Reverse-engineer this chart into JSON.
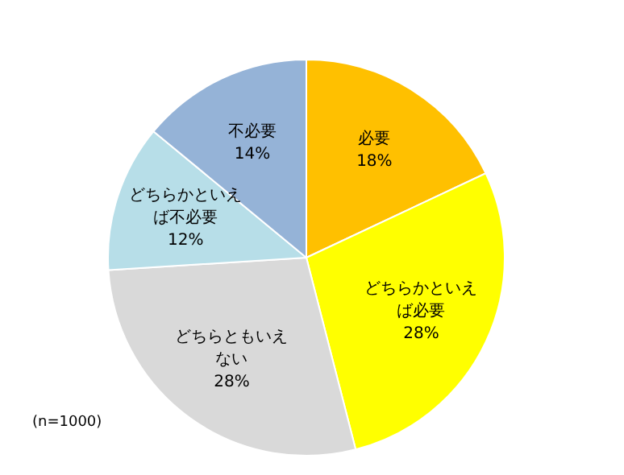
{
  "chart_data": {
    "type": "pie",
    "categories": [
      "必要",
      "どちらかといえば必要",
      "どちらともいえない",
      "どちらかといえば不必要",
      "不必要"
    ],
    "values": [
      18,
      28,
      28,
      12,
      14
    ],
    "value_labels": [
      "18%",
      "28%",
      "28%",
      "12%",
      "14%"
    ],
    "colors": [
      "#ffc000",
      "#ffff00",
      "#d9d9d9",
      "#b7dee8",
      "#95b3d7"
    ],
    "legend": false,
    "annotations": [
      "(n=1000)"
    ]
  }
}
